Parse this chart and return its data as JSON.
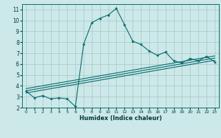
{
  "xlabel": "Humidex (Indice chaleur)",
  "bg_color": "#cce8e8",
  "grid_color": "#aacccc",
  "line_color": "#006868",
  "xlim": [
    -0.5,
    23.5
  ],
  "ylim": [
    2,
    11.5
  ],
  "xticks": [
    0,
    1,
    2,
    3,
    4,
    5,
    6,
    7,
    8,
    9,
    10,
    11,
    12,
    13,
    14,
    15,
    16,
    17,
    18,
    19,
    20,
    21,
    22,
    23
  ],
  "yticks": [
    2,
    3,
    4,
    5,
    6,
    7,
    8,
    9,
    10,
    11
  ],
  "curve1_x": [
    0,
    1,
    2,
    3,
    4,
    5,
    6,
    7,
    8,
    9,
    10,
    11,
    12,
    13,
    14,
    15,
    16,
    17,
    18,
    19,
    20,
    21,
    22,
    23
  ],
  "curve1_y": [
    3.5,
    2.9,
    3.1,
    2.8,
    2.9,
    2.8,
    2.1,
    7.8,
    9.8,
    10.2,
    10.5,
    11.1,
    9.6,
    8.1,
    7.8,
    7.2,
    6.8,
    7.1,
    6.3,
    6.1,
    6.5,
    6.3,
    6.7,
    6.2
  ],
  "line1_x": [
    0,
    23
  ],
  "line1_y": [
    3.35,
    6.35
  ],
  "line2_x": [
    0,
    23
  ],
  "line2_y": [
    3.55,
    6.55
  ],
  "line3_x": [
    0,
    23
  ],
  "line3_y": [
    3.75,
    6.75
  ]
}
